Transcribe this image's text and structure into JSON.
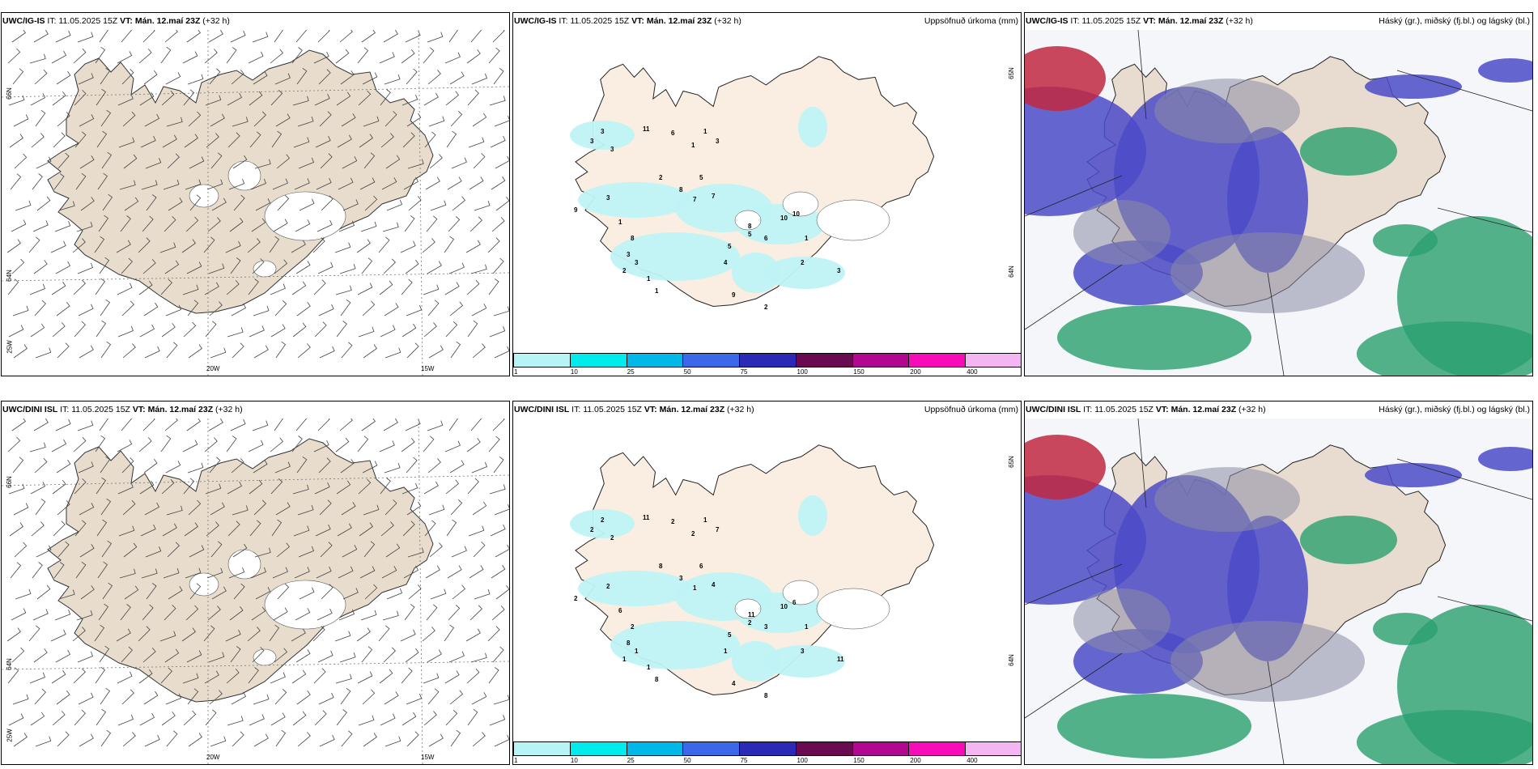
{
  "rows": [
    {
      "model": "UWC/IG-IS",
      "it_label": "IT:",
      "it_value": "11.05.2025 15Z",
      "vt_label": "VT:",
      "vt_value": "Mán. 12.maí 23Z",
      "lead": "(+32 h)",
      "lon_labels": [
        "20W",
        "15W"
      ],
      "lat_labels": [
        "66N",
        "64N",
        "25W"
      ],
      "precip_numbers": [
        "3",
        "3",
        "3",
        "11",
        "6",
        "1",
        "1",
        "3",
        "2",
        "5",
        "8",
        "7",
        "7",
        "3",
        "9",
        "1",
        "8",
        "3",
        "3",
        "2",
        "1",
        "1",
        "8",
        "10",
        "10",
        "6",
        "5",
        "4",
        "9",
        "2",
        "5",
        "2",
        "3",
        "1"
      ],
      "precip_lat_labels": [
        "65N",
        "64N"
      ]
    },
    {
      "model": "UWC/DINI ISL",
      "it_label": "IT:",
      "it_value": "11.05.2025 15Z",
      "vt_label": "VT:",
      "vt_value": "Mán. 12.maí 23Z",
      "lead": "(+32 h)",
      "lon_labels": [
        "20W",
        "15W"
      ],
      "lat_labels": [
        "66N",
        "64N",
        "25W"
      ],
      "precip_numbers": [
        "2",
        "2",
        "2",
        "11",
        "2",
        "2",
        "1",
        "7",
        "8",
        "6",
        "3",
        "1",
        "4",
        "2",
        "2",
        "6",
        "2",
        "8",
        "1",
        "1",
        "1",
        "8",
        "11",
        "10",
        "6",
        "3",
        "5",
        "1",
        "4",
        "8",
        "2",
        "3",
        "11",
        "1"
      ],
      "precip_lat_labels": [
        "65N",
        "64N"
      ]
    }
  ],
  "cloud_header_model": "UWC/IG-IS",
  "precip_title": "Uppsöfnuð úrkoma (mm)",
  "cloud_title": "Háský (gr.), miðský (fj.bl.) og lágský (bl.)",
  "legend": {
    "colors": [
      "#b7f4f6",
      "#00ecec",
      "#00b8e8",
      "#3a68e8",
      "#2a2ab6",
      "#6a0a52",
      "#b0088e",
      "#f80cba",
      "#f4b6f2"
    ],
    "labels": [
      "1",
      "10",
      "25",
      "50",
      "75",
      "100",
      "150",
      "200",
      "400"
    ]
  },
  "colors": {
    "land_wind": "#e8dccc",
    "land_precip": "#faeee2",
    "land_cloud": "#e8dcd0",
    "precip_light": "#bff3f5",
    "cloud_high_grey": "#8c8ca4",
    "cloud_mid_blue": "#4b4bc8",
    "cloud_low_green": "#2aa06e",
    "cloud_red": "#c02840"
  }
}
